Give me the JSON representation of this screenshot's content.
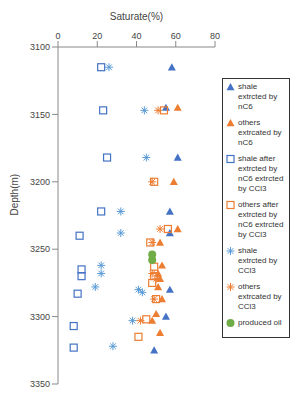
{
  "chart_data": {
    "type": "scatter",
    "x_label": "Saturate(%)",
    "y_label": "Depth(m)",
    "xlim": [
      0,
      80
    ],
    "xticks": [
      0,
      20,
      40,
      60,
      80
    ],
    "ylim": [
      3100,
      3350
    ],
    "yticks": [
      3100,
      3150,
      3200,
      3250,
      3300,
      3350
    ],
    "grid": false,
    "legend": "right",
    "series": [
      {
        "name": "shale extrcted by nC6",
        "color": "#4472C4",
        "marker": "triangle",
        "x": [
          58,
          55,
          61,
          57,
          57,
          57,
          55,
          49
        ],
        "y": [
          3115,
          3145,
          3182,
          3222,
          3238,
          3280,
          3300,
          3325
        ]
      },
      {
        "name": "others extrcated by nC6",
        "color": "#ED7D31",
        "marker": "triangle",
        "x": [
          61,
          59,
          61,
          52,
          53,
          51,
          52,
          51,
          53,
          50,
          48,
          52
        ],
        "y": [
          3145,
          3200,
          3235,
          3245,
          3262,
          3268,
          3272,
          3278,
          3287,
          3298,
          3303,
          3312
        ]
      },
      {
        "name": "shale after extrcted by nC6 extrcted by CCl3",
        "color": "#4472C4",
        "marker": "open_square",
        "x": [
          22,
          23,
          25,
          22,
          11,
          12,
          12,
          10,
          8,
          8
        ],
        "y": [
          3115,
          3147,
          3182,
          3222,
          3240,
          3265,
          3270,
          3283,
          3307,
          3323
        ]
      },
      {
        "name": "others after extrcted by nC6 extrcted by CCl3",
        "color": "#ED7D31",
        "marker": "open_square",
        "x": [
          54,
          49,
          56,
          47,
          49,
          49,
          48,
          50,
          45,
          41
        ],
        "y": [
          3147,
          3200,
          3235,
          3245,
          3263,
          3270,
          3275,
          3287,
          3302,
          3315
        ]
      },
      {
        "name": "shale extrcted by CCl3",
        "color": "#5B9BD5",
        "marker": "asterisk",
        "x": [
          26,
          44,
          45,
          32,
          32,
          22,
          22,
          19,
          41,
          43,
          38,
          28
        ],
        "y": [
          3115,
          3147,
          3182,
          3222,
          3238,
          3262,
          3268,
          3278,
          3280,
          3282,
          3303,
          3322
        ]
      },
      {
        "name": "others extrcated by CCl3",
        "color": "#ED7D31",
        "marker": "asterisk",
        "x": [
          51,
          48,
          52,
          48,
          48,
          50,
          49,
          42
        ],
        "y": [
          3147,
          3200,
          3235,
          3245,
          3268,
          3272,
          3287,
          3303
        ]
      },
      {
        "name": "produced oil",
        "color": "#70AD47",
        "marker": "circle",
        "x": [
          48,
          48
        ],
        "y": [
          3254,
          3258
        ]
      }
    ]
  }
}
